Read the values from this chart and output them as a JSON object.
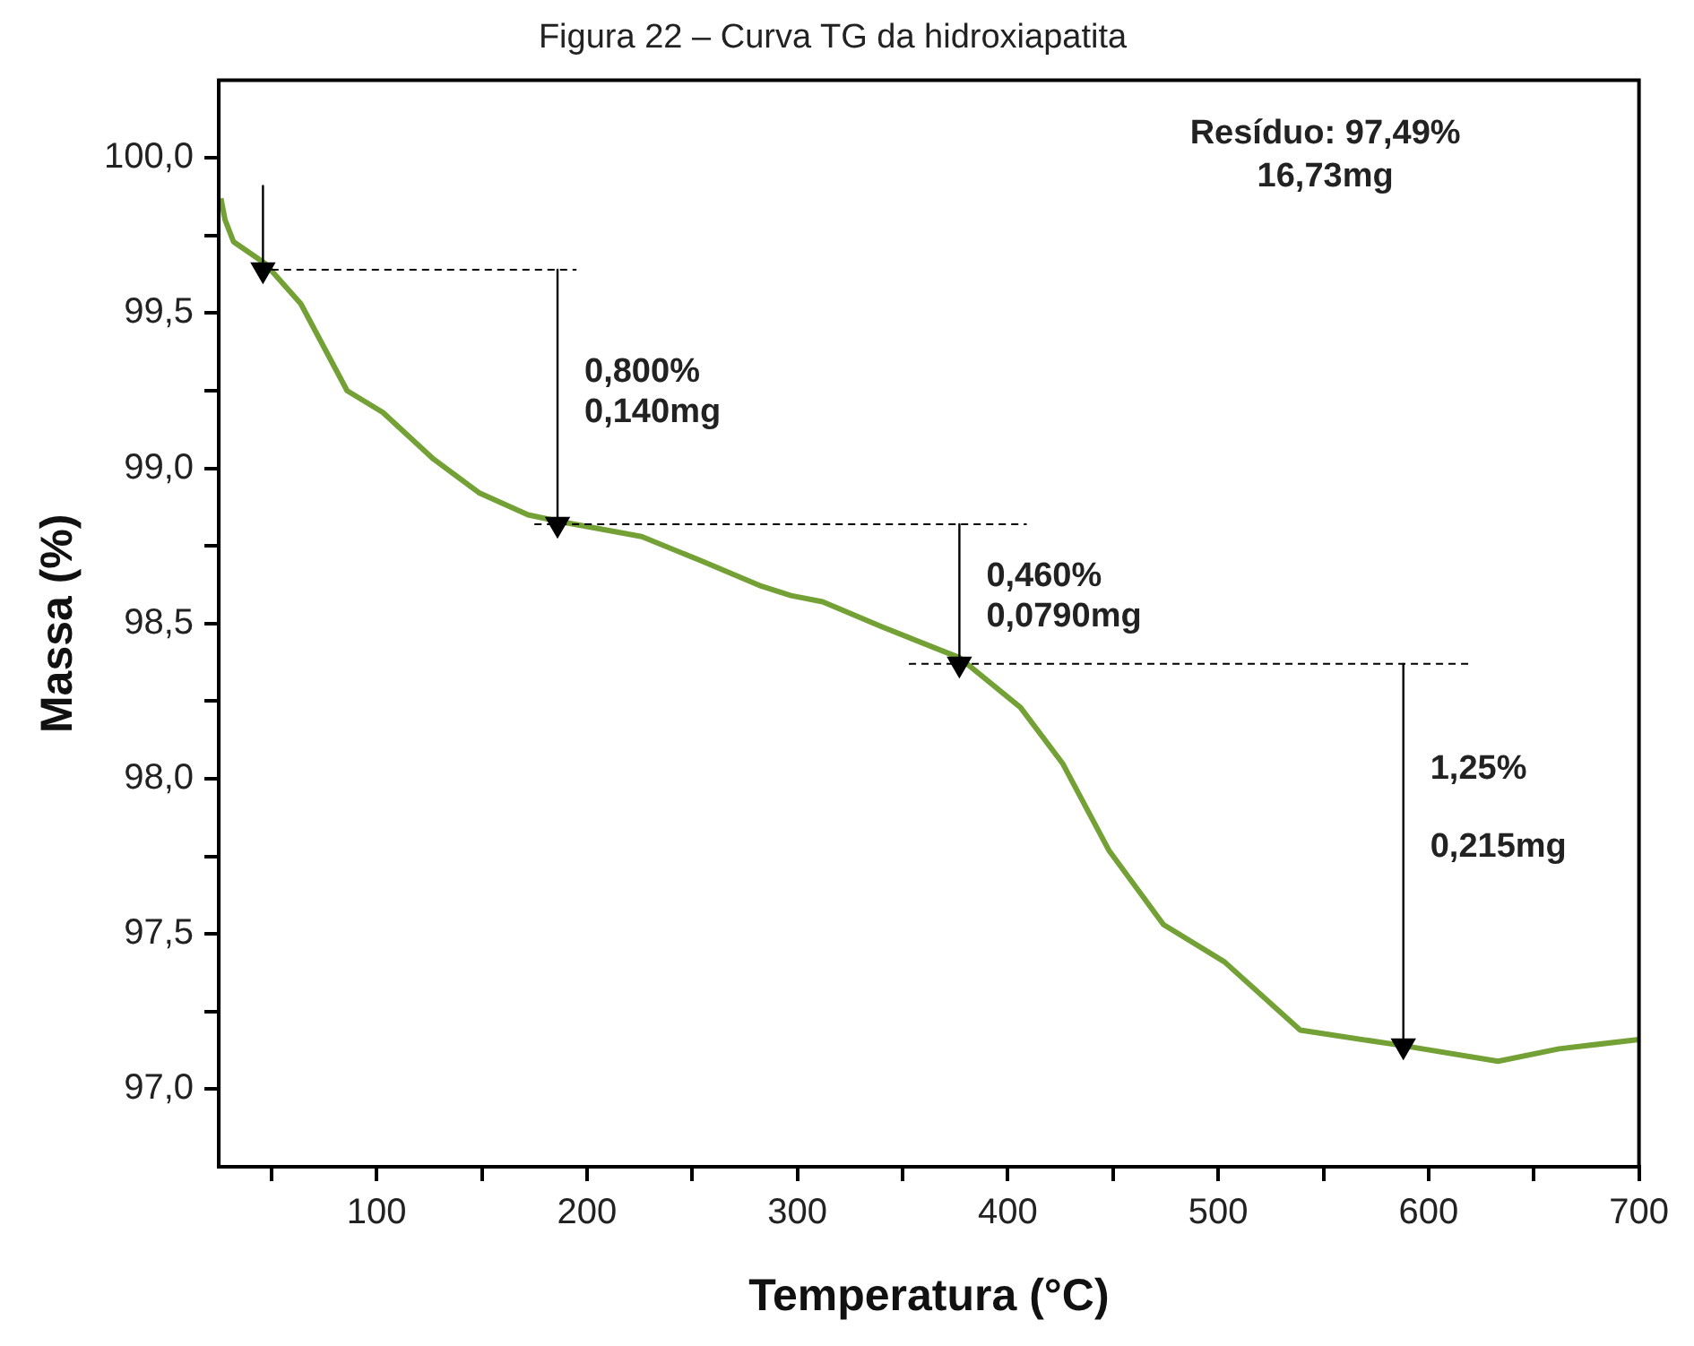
{
  "chart_data": {
    "type": "line",
    "title": "Figura 22 – Curva TG da hidroxiapatita",
    "xlabel": "Temperatura (°C)",
    "ylabel": "Massa (%)",
    "xlim": [
      25,
      700
    ],
    "ylim": [
      96.75,
      100.25
    ],
    "xticks": [
      {
        "value": 50,
        "label": null
      },
      {
        "value": 100,
        "label": "100"
      },
      {
        "value": 150,
        "label": null
      },
      {
        "value": 200,
        "label": "200"
      },
      {
        "value": 250,
        "label": null
      },
      {
        "value": 300,
        "label": "300"
      },
      {
        "value": 350,
        "label": null
      },
      {
        "value": 400,
        "label": "400"
      },
      {
        "value": 450,
        "label": null
      },
      {
        "value": 500,
        "label": "500"
      },
      {
        "value": 550,
        "label": null
      },
      {
        "value": 600,
        "label": "600"
      },
      {
        "value": 650,
        "label": null
      },
      {
        "value": 700,
        "label": "700"
      }
    ],
    "yticks": [
      {
        "value": 97.0,
        "label": "97,0"
      },
      {
        "value": 97.25,
        "label": null
      },
      {
        "value": 97.5,
        "label": "97,5"
      },
      {
        "value": 97.75,
        "label": null
      },
      {
        "value": 98.0,
        "label": "98,0"
      },
      {
        "value": 98.25,
        "label": null
      },
      {
        "value": 98.5,
        "label": "98,5"
      },
      {
        "value": 98.75,
        "label": null
      },
      {
        "value": 99.0,
        "label": "99,0"
      },
      {
        "value": 99.25,
        "label": null
      },
      {
        "value": 99.5,
        "label": "99,5"
      },
      {
        "value": 99.75,
        "label": null
      },
      {
        "value": 100.0,
        "label": "100,0"
      }
    ],
    "grid": false,
    "legend": false,
    "annotations": [
      "Resíduo: 97,49%",
      "16,73mg",
      {
        "text": "0,800%",
        "x": 186,
        "y": 99.31
      },
      {
        "text": "0,140mg",
        "x": 186,
        "y": 99.18
      },
      {
        "text": "0,460%",
        "x": 377,
        "y": 98.65
      },
      {
        "text": "0,0790mg",
        "x": 377,
        "y": 98.52
      },
      {
        "text": "1,25%",
        "x": 588,
        "y": 98.03
      },
      {
        "text": "0,215mg",
        "x": 588,
        "y": 97.78
      }
    ],
    "series": [
      {
        "color": "#73a136",
        "x": [
          26,
          28,
          32,
          47,
          64,
          86,
          103,
          127,
          149,
          172,
          186,
          226,
          255,
          283,
          297,
          312,
          340,
          377,
          406,
          426,
          448,
          474,
          503,
          539,
          588,
          633,
          662,
          700
        ],
        "values": [
          99.87,
          99.8,
          99.73,
          99.66,
          99.53,
          99.25,
          99.18,
          99.03,
          98.92,
          98.85,
          98.83,
          98.78,
          98.7,
          98.62,
          98.59,
          98.57,
          98.49,
          98.39,
          98.23,
          98.05,
          97.77,
          97.53,
          97.41,
          97.19,
          97.14,
          97.09,
          97.13,
          97.16
        ]
      },
      {
        "color": "#000000",
        "line_style": "dashed",
        "x": [
          50,
          195
        ],
        "values": [
          99.64,
          99.64
        ]
      },
      {
        "color": "#000000",
        "line_style": "dashed",
        "x": [
          175,
          409
        ],
        "values": [
          98.82,
          98.82
        ]
      },
      {
        "color": "#000000",
        "line_style": "dashed",
        "x": [
          353,
          620
        ],
        "values": [
          98.37,
          98.37
        ]
      },
      {
        "color": "#000000",
        "marker": "triangle",
        "x": [
          46,
          46
        ],
        "values": [
          99.91,
          99.64
        ]
      },
      {
        "color": "#000000",
        "marker": "triangle",
        "x": [
          186,
          186
        ],
        "values": [
          99.64,
          98.82
        ]
      },
      {
        "color": "#000000",
        "marker": "triangle",
        "x": [
          377,
          377
        ],
        "values": [
          98.82,
          98.37
        ]
      },
      {
        "color": "#000000",
        "marker": "triangle",
        "x": [
          588,
          588
        ],
        "values": [
          98.37,
          97.14
        ]
      }
    ]
  }
}
